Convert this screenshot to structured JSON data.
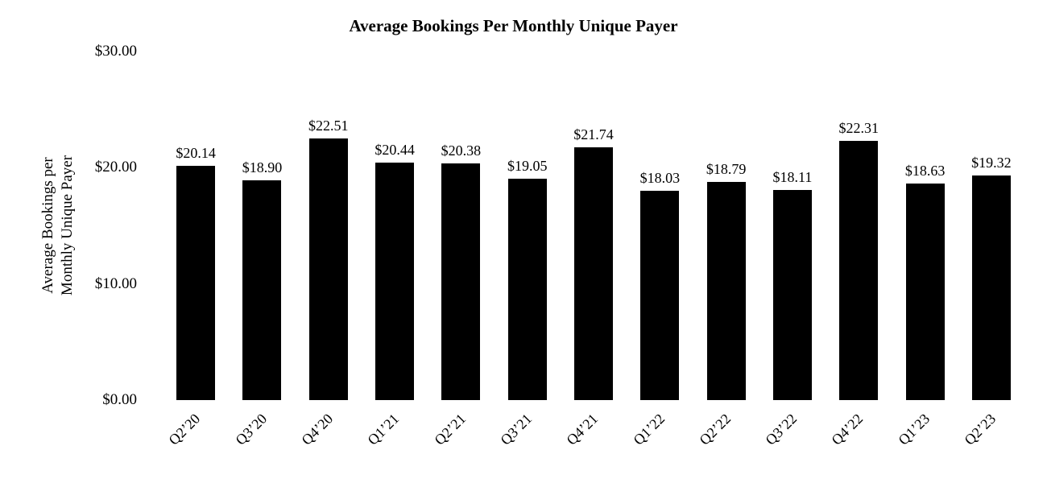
{
  "chart_data": {
    "type": "bar",
    "title": "Average Bookings Per Monthly Unique Payer",
    "ylabel": "Average Bookings per Monthly Unique Payer",
    "ylabel_lines": [
      "Average Bookings per",
      "Monthly Unique Payer"
    ],
    "xlabel": "",
    "categories": [
      "Q2’20",
      "Q3’20",
      "Q4’20",
      "Q1’21",
      "Q2’21",
      "Q3’21",
      "Q4’21",
      "Q1’22",
      "Q2’22",
      "Q3’22",
      "Q4’22",
      "Q1’23",
      "Q2’23"
    ],
    "values": [
      20.14,
      18.9,
      22.51,
      20.44,
      20.38,
      19.05,
      21.74,
      18.03,
      18.79,
      18.11,
      22.31,
      18.63,
      19.32
    ],
    "value_labels": [
      "$20.14",
      "$18.90",
      "$22.51",
      "$20.44",
      "$20.38",
      "$19.05",
      "$21.74",
      "$18.03",
      "$18.79",
      "$18.11",
      "$22.31",
      "$18.63",
      "$19.32"
    ],
    "yticks": [
      {
        "label": "$0.00",
        "value": 0
      },
      {
        "label": "$10.00",
        "value": 10
      },
      {
        "label": "$20.00",
        "value": 20
      },
      {
        "label": "$30.00",
        "value": 30
      }
    ],
    "ylim": [
      0,
      30
    ],
    "bar_color": "#000000",
    "text_color": "#000000",
    "background": "#ffffff",
    "grid": false,
    "legend": "none"
  }
}
